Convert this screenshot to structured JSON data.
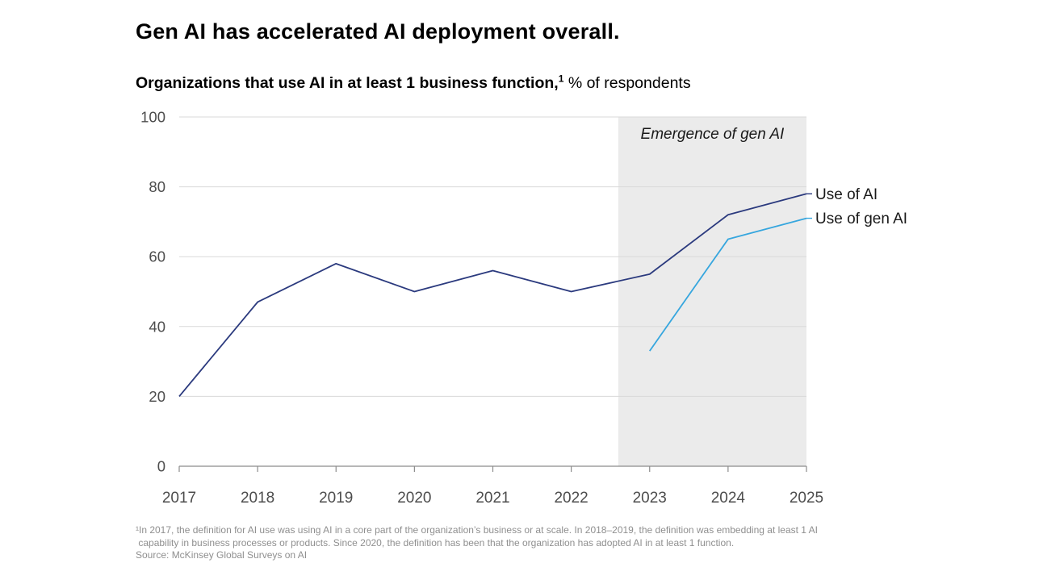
{
  "header": {
    "title": "Gen AI has accelerated AI deployment overall.",
    "subtitle": {
      "bold": "Organizations that use AI in at least 1 business function,",
      "superscript": "1",
      "rest": "% of respondents"
    }
  },
  "chart_data": {
    "type": "line",
    "title": "Organizations that use AI in at least 1 business function, % of respondents",
    "x": [
      2017,
      2018,
      2019,
      2020,
      2021,
      2022,
      2023,
      2024,
      2025
    ],
    "series": [
      {
        "name": "Use of AI",
        "color": "#2b3a7e",
        "values": [
          20,
          47,
          58,
          50,
          56,
          50,
          55,
          72,
          78
        ]
      },
      {
        "name": "Use of gen AI",
        "color": "#36a6de",
        "values": [
          null,
          null,
          null,
          null,
          null,
          null,
          33,
          65,
          71
        ]
      }
    ],
    "ylim": [
      0,
      100
    ],
    "yticks": [
      0,
      20,
      40,
      60,
      80,
      100
    ],
    "xlabel": "",
    "ylabel": "% of respondents",
    "grid": "horizontal",
    "legend_position": "right-of-line-end",
    "annotation": {
      "label": "Emergence of gen AI",
      "region_x_start": 2022.6,
      "region_x_end": 2025,
      "region_color": "#ebebeb"
    },
    "style": {
      "grid_color": "#d9d9d9",
      "axis_color": "#8c8c8c",
      "tick_label_color": "#4d4d4d",
      "annotation_text_color": "#1a1a1a",
      "series_label_color": "#1a1a1a"
    }
  },
  "footer": {
    "footnote_lines": [
      "¹In 2017, the definition for AI use was using AI in a core part of the organization’s business or at scale. In 2018–2019, the definition was embedding at least 1 AI",
      " capability in business processes or products. Since 2020, the definition has been that the organization has adopted AI in at least 1 function."
    ],
    "source": "Source: McKinsey Global Surveys on AI"
  }
}
